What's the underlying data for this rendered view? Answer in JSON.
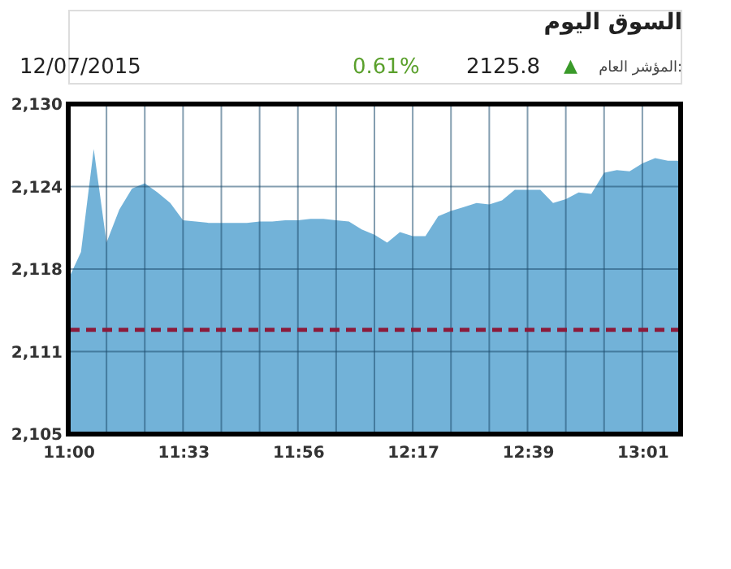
{
  "chart_data": {
    "type": "area",
    "title": "السوق اليوم",
    "annotations": [
      "12/07/2015",
      "0.61%",
      "2125.8",
      "▲",
      "المؤشر العام:"
    ],
    "categories": [
      "11:00",
      null,
      null,
      null,
      null,
      null,
      null,
      null,
      null,
      "11:33",
      null,
      null,
      null,
      null,
      null,
      null,
      null,
      null,
      "11:56",
      null,
      null,
      null,
      null,
      null,
      null,
      null,
      null,
      "12:17",
      null,
      null,
      null,
      null,
      null,
      null,
      null,
      null,
      "12:39",
      null,
      null,
      null,
      null,
      null,
      null,
      null,
      null,
      "13:01",
      null,
      null,
      null
    ],
    "series": [
      {
        "color": "#6aaed6",
        "values": [
          2116.7,
          2118.8,
          2126.6,
          2119.5,
          2122.0,
          2123.6,
          2124.0,
          2123.3,
          2122.5,
          2121.2,
          2121.1,
          2121.0,
          2121.0,
          2121.0,
          2121.0,
          2121.1,
          2121.1,
          2121.2,
          2121.2,
          2121.3,
          2121.3,
          2121.2,
          2121.1,
          2120.5,
          2120.1,
          2119.5,
          2120.3,
          2120.0,
          2120.0,
          2121.5,
          2121.9,
          2122.2,
          2122.5,
          2122.4,
          2122.7,
          2123.5,
          2123.5,
          2123.5,
          2122.5,
          2122.8,
          2123.3,
          2123.2,
          2124.8,
          2125.0,
          2124.9,
          2125.5,
          2125.9,
          2125.7,
          2125.7
        ]
      }
    ],
    "ylim": [
      2105,
      2130
    ],
    "yticks": [
      {
        "value": 2105,
        "label": "2,105"
      },
      {
        "value": 2111.25,
        "label": "2,111"
      },
      {
        "value": 2117.5,
        "label": "2,118"
      },
      {
        "value": 2123.75,
        "label": "2,124"
      },
      {
        "value": 2130,
        "label": "2,130"
      }
    ],
    "ref_lines": [
      {
        "axis": "y",
        "value": 2112.9,
        "color": "#8b1a3a",
        "line_style": "dashed"
      }
    ],
    "grid": true
  }
}
